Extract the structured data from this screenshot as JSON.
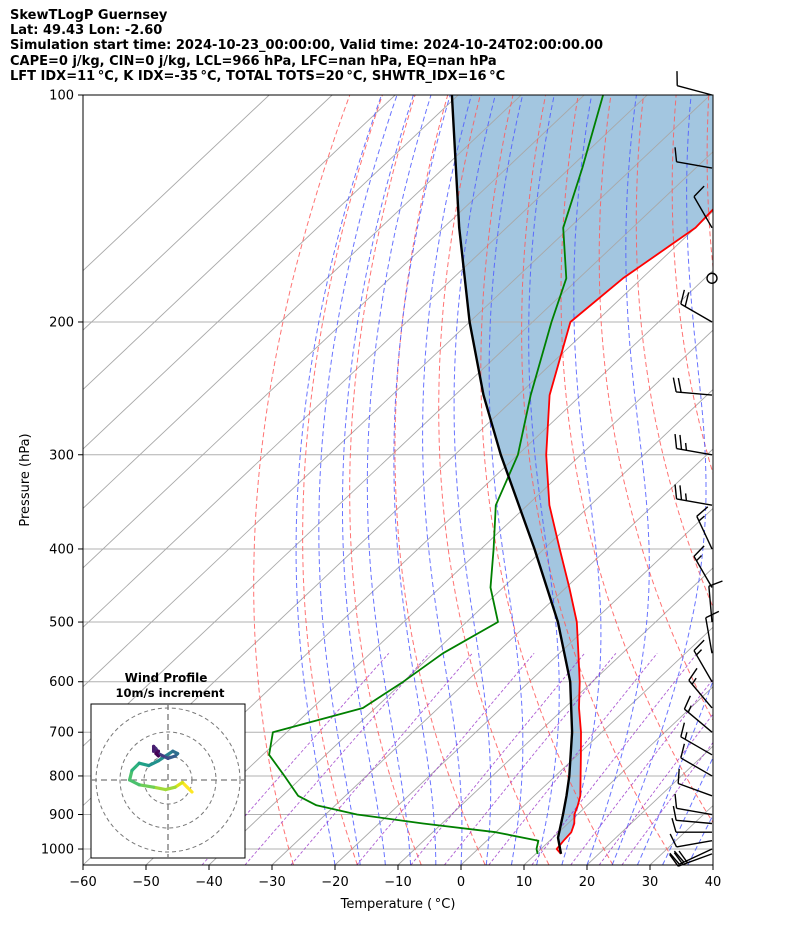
{
  "header": {
    "title": "SkewTLogP Guernsey",
    "location": "Lat: 49.43   Lon: -2.60",
    "times": "Simulation start time: 2024-10-23_00:00:00, Valid time: 2024-10-24T02:00:00.00",
    "indices1": "CAPE=0 j/kg, CIN=0 j/kg, LCL=966 hPa, LFC=nan hPa, EQ=nan hPa",
    "indices2": "LFT IDX=11 °C, K IDX=-35 °C, TOTAL TOTS=20 °C, SHWTR_IDX=16 °C"
  },
  "hodograph": {
    "title": "Wind Profile",
    "subtitle": "10m/s increment"
  },
  "chart_data": {
    "type": "line",
    "subtype": "skew-T log-P",
    "xlabel": "Temperature ( °C)",
    "ylabel": "Pressure (hPa)",
    "xlim": [
      -60,
      40
    ],
    "ylim": [
      1050,
      100
    ],
    "x_ticks": [
      "−60",
      "−50",
      "−40",
      "−30",
      "−20",
      "−10",
      "0",
      "10",
      "20",
      "30",
      "40"
    ],
    "y_ticks": [
      "100",
      "200",
      "300",
      "400",
      "500",
      "600",
      "700",
      "800",
      "900",
      "1000"
    ],
    "series": [
      {
        "name": "temperature",
        "color": "#ff0000",
        "pressure": [
          1015,
          1000,
          975,
          950,
          925,
          900,
          875,
          850,
          800,
          750,
          700,
          650,
          600,
          550,
          500,
          450,
          400,
          350,
          300,
          250,
          200,
          175,
          150,
          125,
          100
        ],
        "values": [
          14.0,
          12.5,
          12.2,
          12.0,
          11.0,
          9.5,
          8.5,
          7.3,
          4.0,
          0.5,
          -3.3,
          -7.7,
          -12.0,
          -17.0,
          -22.5,
          -29.5,
          -37.5,
          -46.5,
          -55.5,
          -65.0,
          -74.0,
          -73.0,
          -70.0,
          -71.0,
          -75.0
        ]
      },
      {
        "name": "dewpoint",
        "color": "#008000",
        "pressure": [
          1015,
          1000,
          975,
          950,
          925,
          900,
          875,
          850,
          800,
          750,
          700,
          650,
          600,
          550,
          500,
          450,
          400,
          350,
          300,
          250,
          200,
          175,
          150,
          125,
          100
        ],
        "values": [
          10.3,
          9.3,
          8.2,
          0.0,
          -13.0,
          -25.0,
          -33.0,
          -37.5,
          -43.0,
          -49.0,
          -52.2,
          -42.0,
          -40.0,
          -38.5,
          -35.0,
          -42.0,
          -48.0,
          -55.0,
          -60.0,
          -68.0,
          -77.0,
          -82.0,
          -91.0,
          -98.0,
          -107.0
        ]
      },
      {
        "name": "parcel",
        "color": "#000000",
        "pressure": [
          1015,
          966,
          900,
          850,
          800,
          700,
          600,
          500,
          400,
          300,
          250,
          200,
          150,
          100
        ],
        "values": [
          14.0,
          10.8,
          7.7,
          5.1,
          2.2,
          -4.7,
          -13.5,
          -25.5,
          -41.5,
          -62.7,
          -75.5,
          -90.0,
          -107.5,
          -131.0
        ]
      }
    ],
    "shading": {
      "between": [
        "parcel",
        "temperature"
      ],
      "color": "#a3c6e0"
    },
    "wind_barb_pressures": [
      1015,
      1000,
      975,
      950,
      925,
      900,
      850,
      800,
      750,
      700,
      650,
      600,
      550,
      500,
      450,
      400,
      350,
      300,
      250,
      200,
      175,
      150,
      125,
      100
    ],
    "hodograph_rings": [
      10,
      20,
      30
    ]
  }
}
